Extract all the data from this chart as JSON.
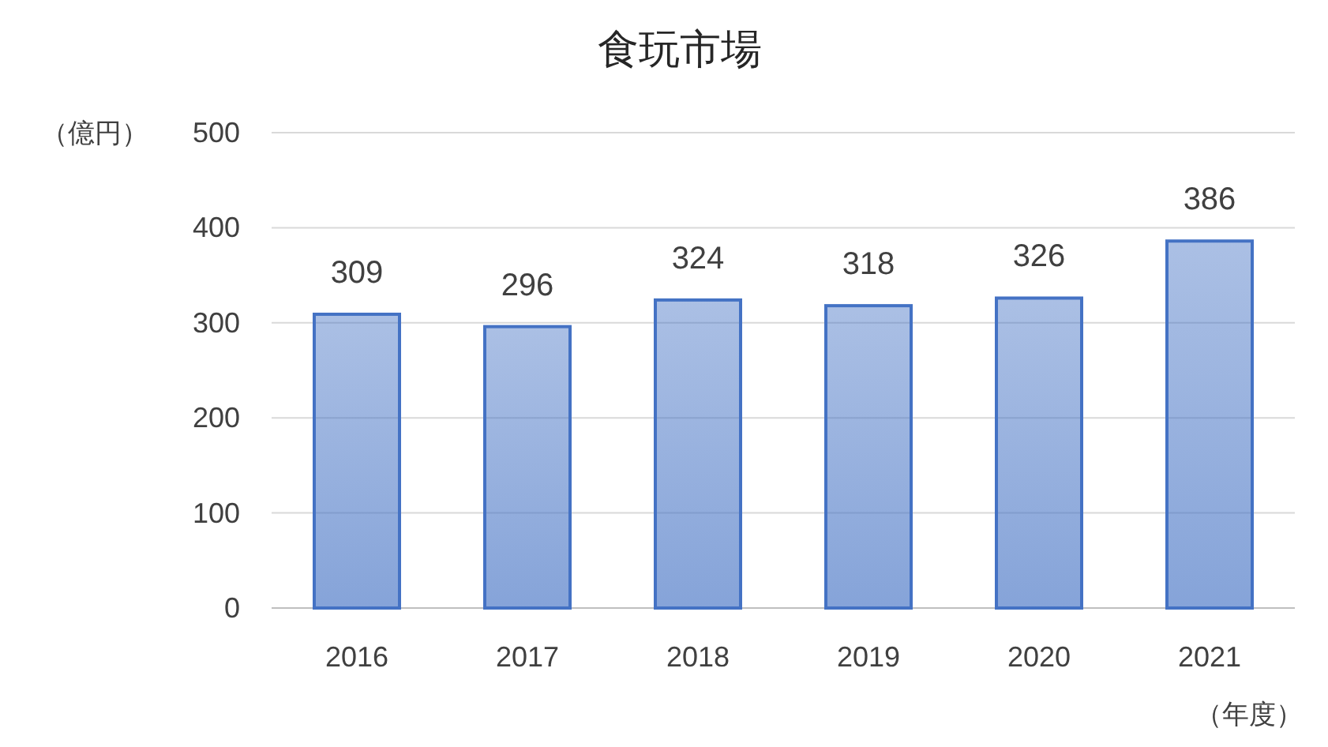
{
  "chart_data": {
    "type": "bar",
    "title": "食玩市場",
    "ylabel": "（億円）",
    "xlabel": "（年度）",
    "categories": [
      "2016",
      "2017",
      "2018",
      "2019",
      "2020",
      "2021"
    ],
    "values": [
      309,
      296,
      324,
      318,
      326,
      386
    ],
    "color": "#4472c4",
    "ylim": [
      0,
      500
    ],
    "yticks": [
      0,
      100,
      200,
      300,
      400,
      500
    ],
    "grid": "y",
    "data_labels": true
  }
}
